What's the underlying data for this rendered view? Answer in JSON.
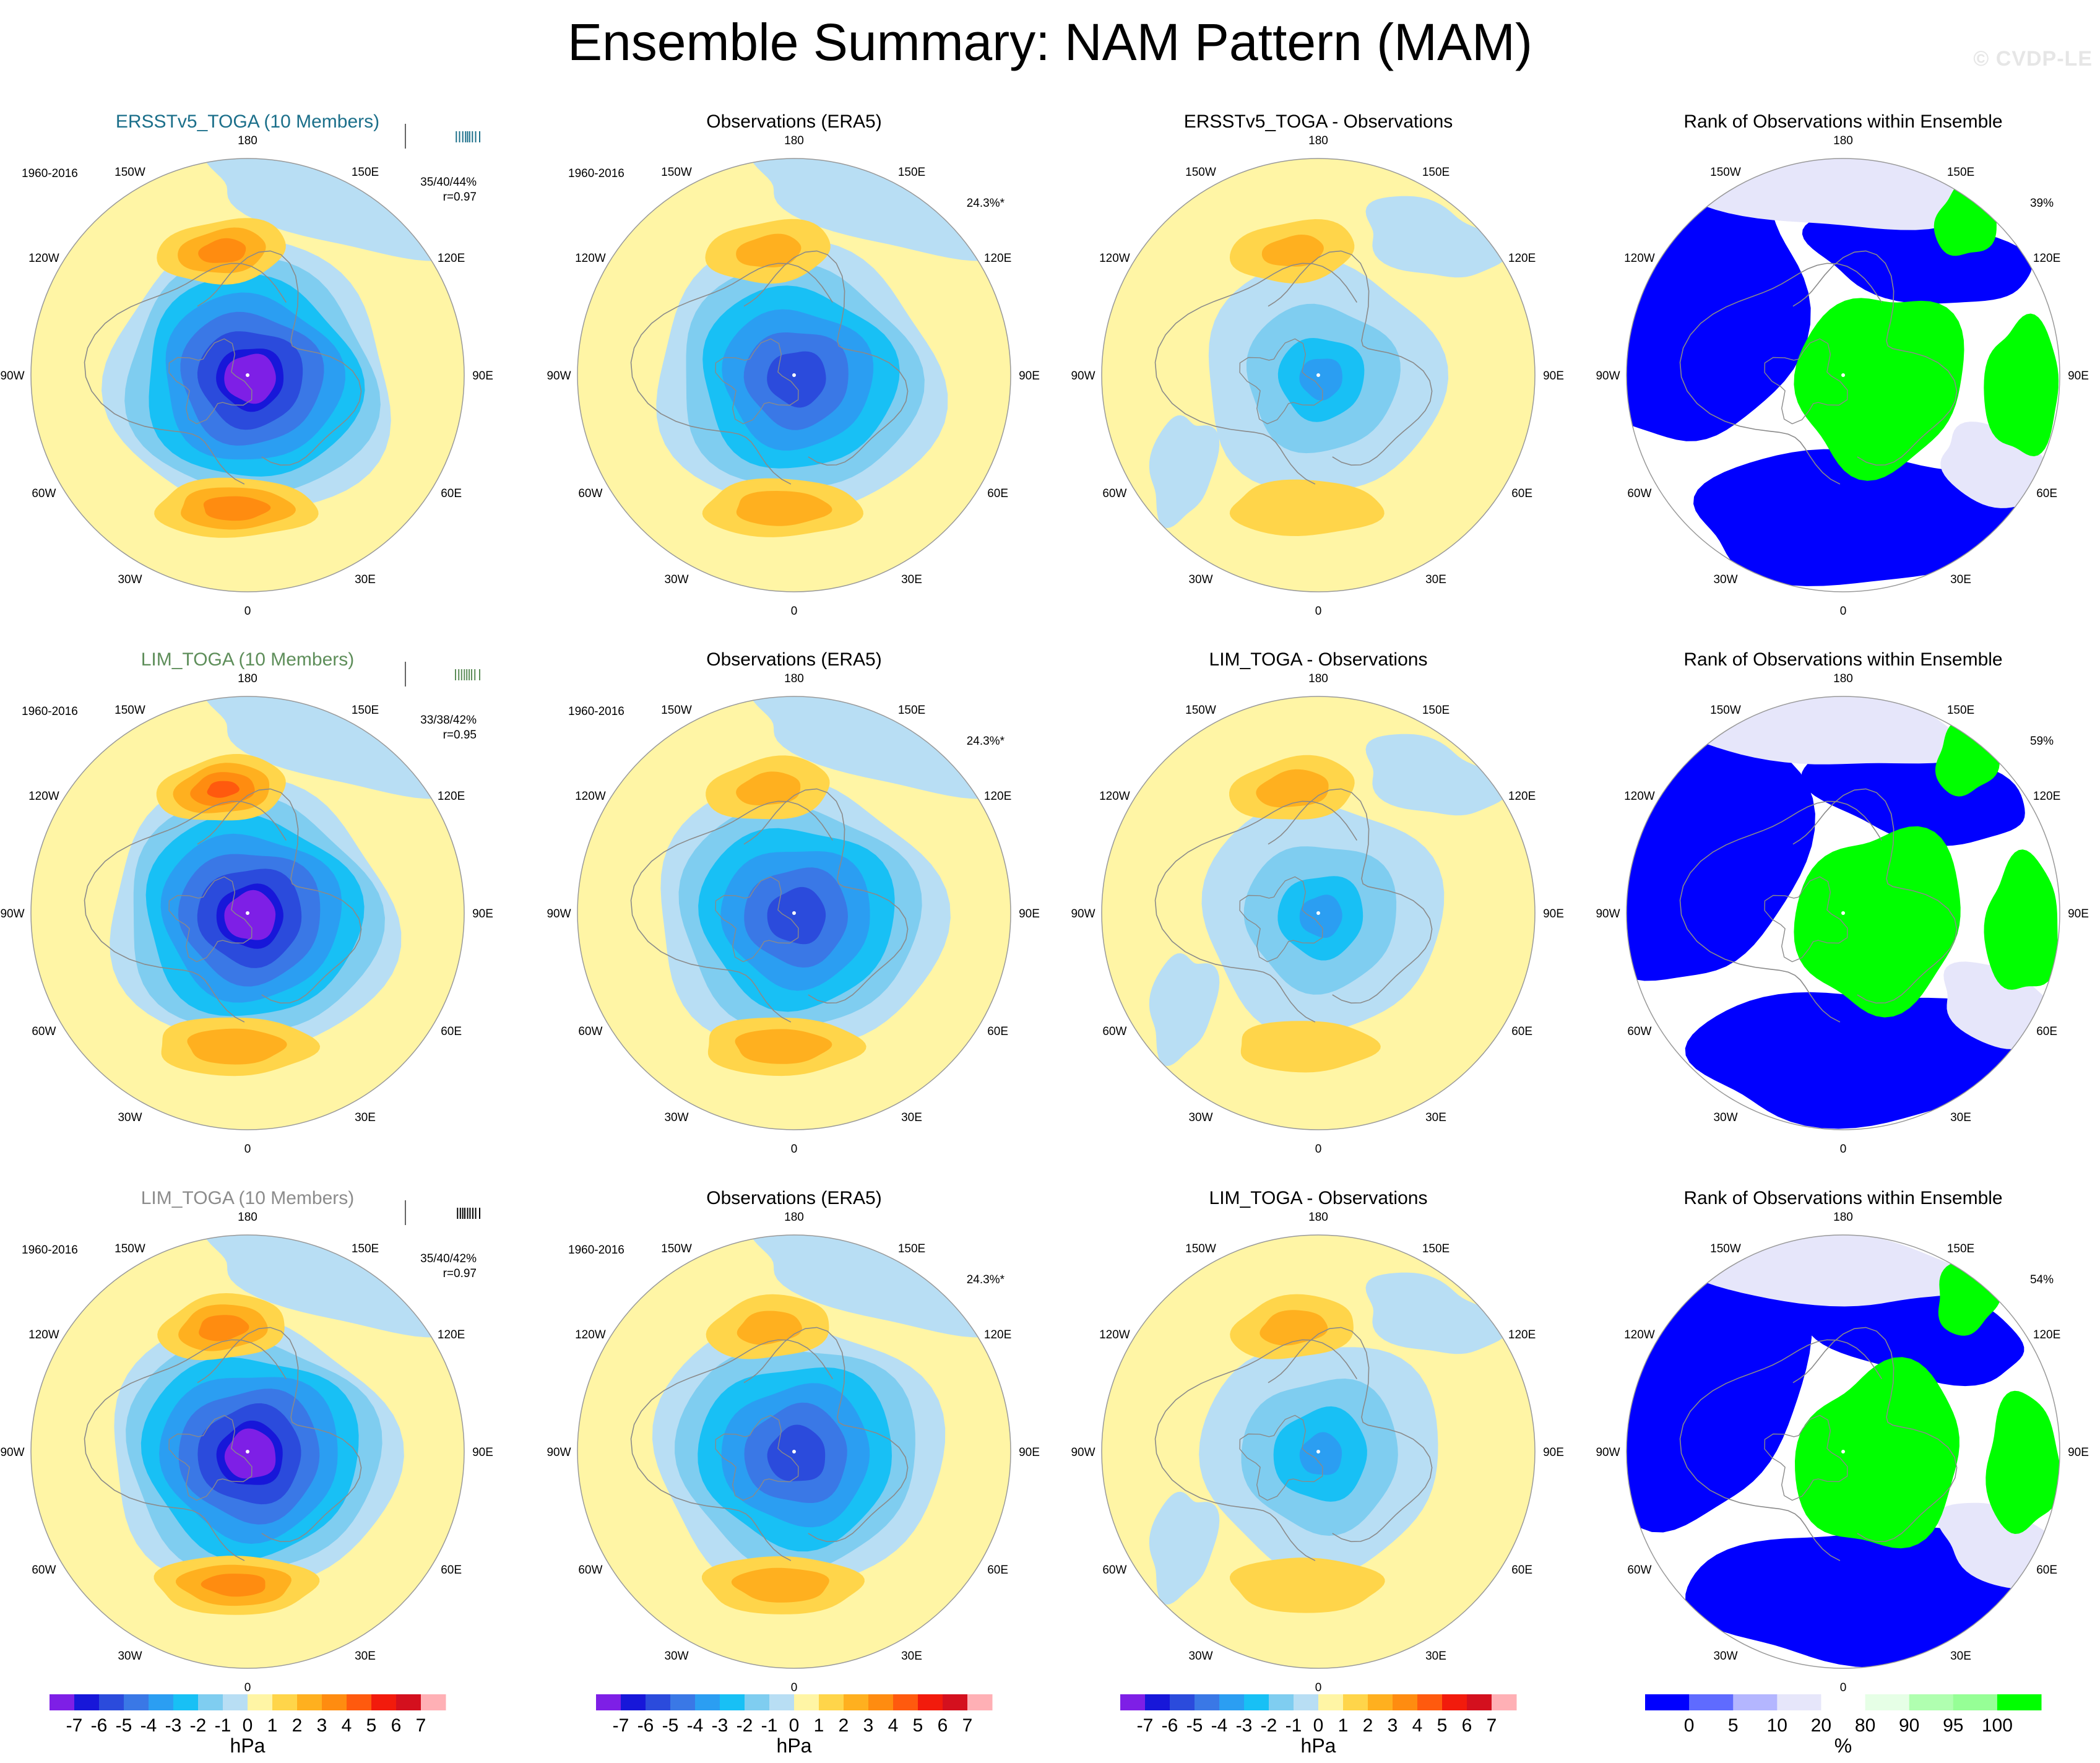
{
  "title": "Ensemble Summary: NAM Pattern (MAM)",
  "watermark": "© CVDP-LE",
  "lon_labels": [
    "180",
    "150E",
    "120E",
    "90E",
    "60E",
    "30E",
    "0",
    "30W",
    "60W",
    "90W",
    "120W",
    "150W"
  ],
  "period": "1960-2016",
  "colors": {
    "ncl": [
      "#7e1fe6",
      "#1717d9",
      "#2b4bdc",
      "#3a78e6",
      "#2b9ef2",
      "#18c0f5",
      "#7fcdf0",
      "#b8def4",
      "#fff5a5",
      "#ffd54a",
      "#ffb01f",
      "#ff8c10",
      "#ff5a0e",
      "#f21b0c",
      "#d4101e",
      "#ffb0b5"
    ],
    "rank": [
      "#0000ff",
      "#5f6bff",
      "#b4b6ff",
      "#e6e6fa",
      "#ffffff",
      "#e6ffe6",
      "#b0ffb0",
      "#96ff96",
      "#00ff00"
    ]
  },
  "rows": [
    {
      "cols": [
        {
          "title": "ERSSTv5_TOGA (10 Members)",
          "title_color": "#1b6f8a",
          "kind": "model",
          "period": "1960-2016",
          "stat1": "35/40/44%",
          "stat2": "r=0.97",
          "stat_color": "#1b6f8a",
          "ticks": [
            0.0,
            0.42,
            0.5,
            0.58,
            0.65,
            0.7,
            0.75,
            0.82,
            0.9,
            1.0
          ],
          "low": 7.2,
          "high_pac": 3.2,
          "high_atl": 3.4
        },
        {
          "title": "Observations (ERA5)",
          "title_color": "#000000",
          "kind": "obs",
          "period": "1960-2016",
          "pct": "24.3%*",
          "low": 5.8,
          "high_pac": 2.1,
          "high_atl": 2.5
        },
        {
          "title": "ERSSTv5_TOGA - Observations",
          "title_color": "#000000",
          "kind": "diff",
          "low": 3.0,
          "high_pac": 2.0,
          "high_atl": 1.6
        },
        {
          "title": "Rank of Observations within Ensemble",
          "title_color": "#000000",
          "kind": "rank",
          "pct": "39%"
        }
      ]
    },
    {
      "cols": [
        {
          "title": "LIM_TOGA (10 Members)",
          "title_color": "#5e8e5a",
          "kind": "model",
          "period": "1960-2016",
          "stat1": "33/38/42%",
          "stat2": "r=0.95",
          "stat_color": "#5e8e5a",
          "ticks": [
            0.0,
            0.4,
            0.48,
            0.55,
            0.62,
            0.68,
            0.74,
            0.8,
            0.88,
            1.0
          ],
          "low": 7.2,
          "high_pac": 4.0,
          "high_atl": 2.6
        },
        {
          "title": "Observations (ERA5)",
          "title_color": "#000000",
          "kind": "obs",
          "period": "1960-2016",
          "pct": "24.3%*",
          "low": 5.8,
          "high_pac": 2.1,
          "high_atl": 2.5
        },
        {
          "title": "LIM_TOGA - Observations",
          "title_color": "#000000",
          "kind": "diff",
          "low": 3.0,
          "high_pac": 2.4,
          "high_atl": 0.9
        },
        {
          "title": "Rank of Observations within Ensemble",
          "title_color": "#000000",
          "kind": "rank",
          "pct": "59%"
        }
      ]
    },
    {
      "cols": [
        {
          "title": "LIM_TOGA (10 Members)",
          "title_color": "#8c8c8c",
          "kind": "model",
          "period": "1960-2016",
          "stat1": "35/40/42%",
          "stat2": "r=0.97",
          "stat_color": "#000000",
          "ticks": [
            0.0,
            0.45,
            0.52,
            0.58,
            0.63,
            0.7,
            0.76,
            0.83,
            0.9,
            1.0
          ],
          "low": 7.2,
          "high_pac": 3.3,
          "high_atl": 3.3
        },
        {
          "title": "Observations (ERA5)",
          "title_color": "#000000",
          "kind": "obs",
          "period": "1960-2016",
          "pct": "24.3%*",
          "low": 5.8,
          "high_pac": 2.1,
          "high_atl": 2.5
        },
        {
          "title": "LIM_TOGA - Observations",
          "title_color": "#000000",
          "kind": "diff",
          "low": 3.2,
          "high_pac": 2.2,
          "high_atl": 1.5
        },
        {
          "title": "Rank of Observations within Ensemble",
          "title_color": "#000000",
          "kind": "rank",
          "pct": "54%"
        }
      ]
    }
  ],
  "colorbars": [
    {
      "labels": [
        "-7",
        "-6",
        "-5",
        "-4",
        "-3",
        "-2",
        "-1",
        "0",
        "1",
        "2",
        "3",
        "4",
        "5",
        "6",
        "7"
      ],
      "unit": "hPa",
      "palette": "ncl"
    },
    {
      "labels": [
        "-7",
        "-6",
        "-5",
        "-4",
        "-3",
        "-2",
        "-1",
        "0",
        "1",
        "2",
        "3",
        "4",
        "5",
        "6",
        "7"
      ],
      "unit": "hPa",
      "palette": "ncl"
    },
    {
      "labels": [
        "-7",
        "-6",
        "-5",
        "-4",
        "-3",
        "-2",
        "-1",
        "0",
        "1",
        "2",
        "3",
        "4",
        "5",
        "6",
        "7"
      ],
      "unit": "hPa",
      "palette": "ncl"
    },
    {
      "labels": [
        "0",
        "5",
        "10",
        "20",
        "80",
        "90",
        "95",
        "100"
      ],
      "unit": "%",
      "palette": "rank"
    }
  ]
}
